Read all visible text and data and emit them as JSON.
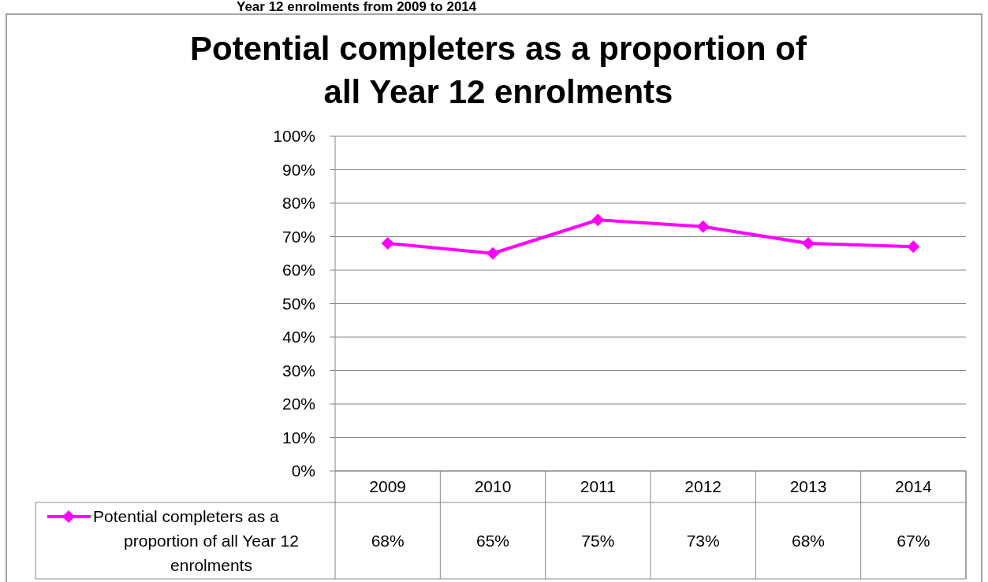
{
  "chart_data": {
    "type": "line",
    "title": "Potential completers as a proportion of all Year 12 enrolments",
    "annotations": [
      "Year 12 enrolments from 2009 to 2014"
    ],
    "categories": [
      "2009",
      "2010",
      "2011",
      "2012",
      "2013",
      "2014"
    ],
    "series": [
      {
        "name": "Potential completers as a proportion of all Year 12 enrolments",
        "color": "#ff00ff",
        "values": [
          68,
          65,
          75,
          73,
          68,
          67
        ],
        "value_labels": [
          "68%",
          "65%",
          "75%",
          "73%",
          "68%",
          "67%"
        ]
      }
    ],
    "ylim": [
      0,
      100
    ],
    "yticks": [
      {
        "value": 0,
        "label": "0%"
      },
      {
        "value": 10,
        "label": "10%"
      },
      {
        "value": 20,
        "label": "20%"
      },
      {
        "value": 30,
        "label": "30%"
      },
      {
        "value": 40,
        "label": "40%"
      },
      {
        "value": 50,
        "label": "50%"
      },
      {
        "value": 60,
        "label": "60%"
      },
      {
        "value": 70,
        "label": "70%"
      },
      {
        "value": 80,
        "label": "80%"
      },
      {
        "value": 90,
        "label": "90%"
      },
      {
        "value": 100,
        "label": "100%"
      }
    ],
    "grid": "y",
    "marker": "diamond",
    "line_style": "solid",
    "legend": "bottom left"
  }
}
